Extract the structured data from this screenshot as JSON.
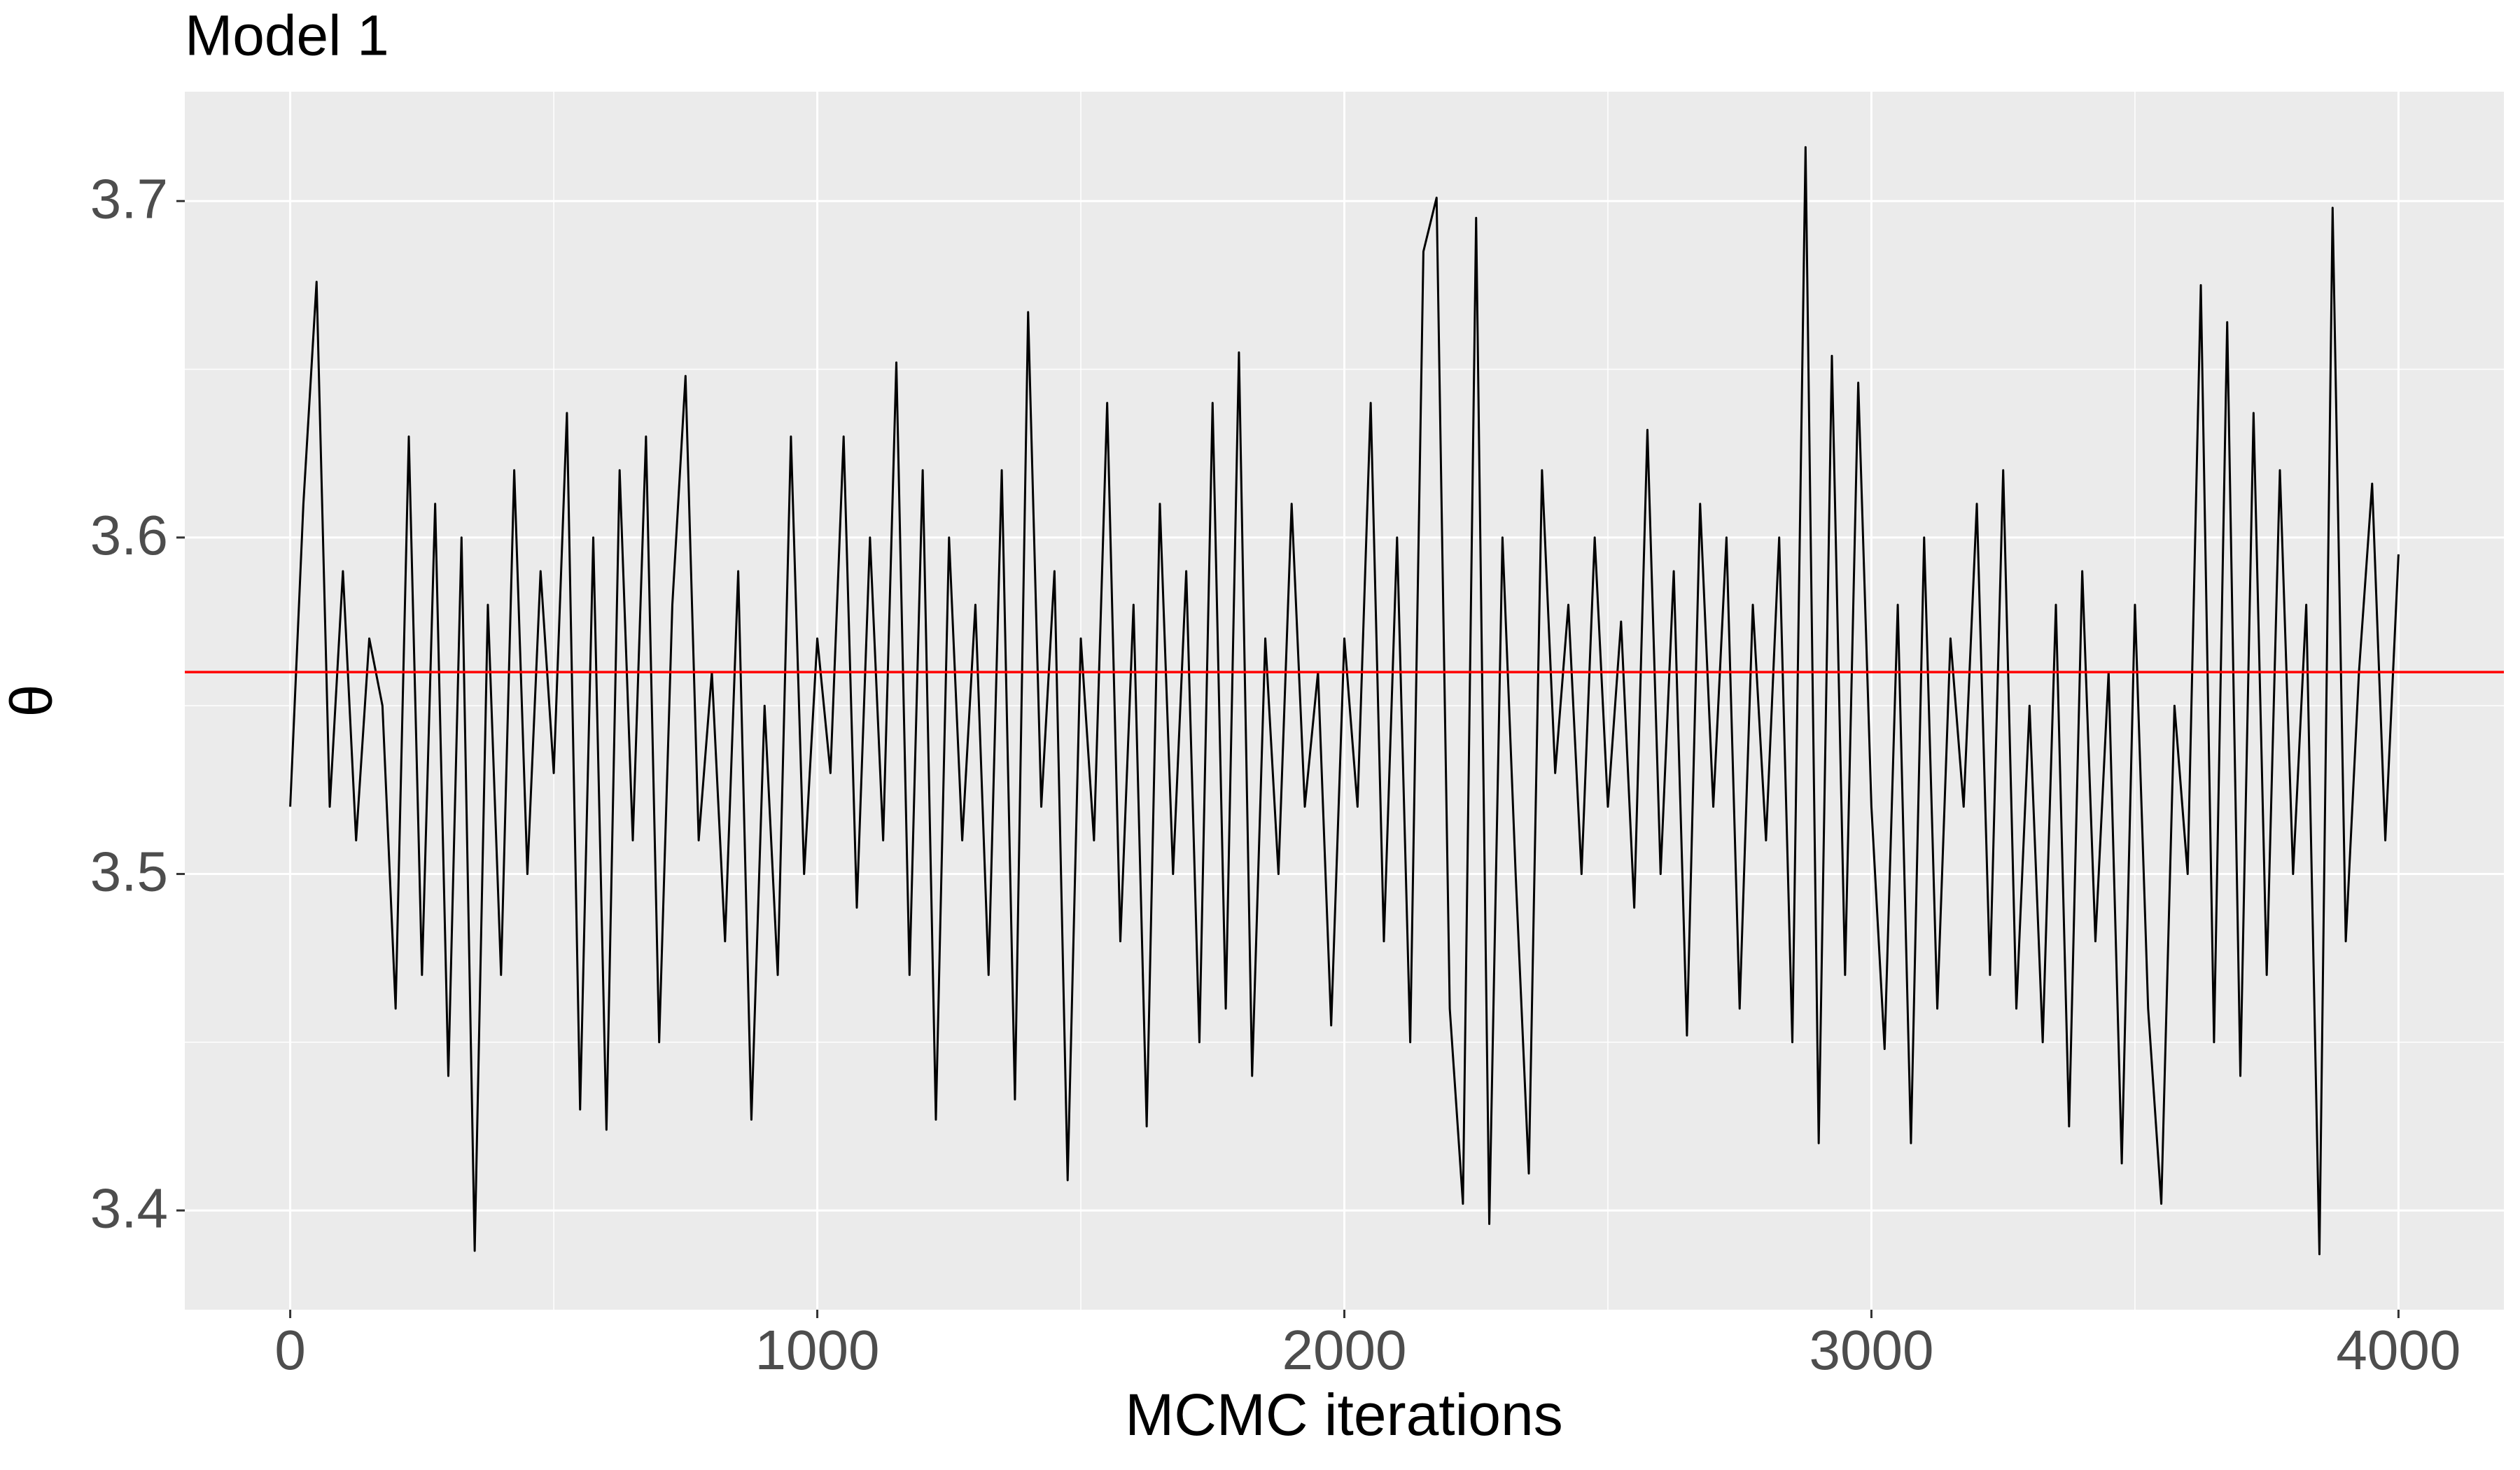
{
  "chart_data": {
    "type": "line",
    "title": "Model 1",
    "x_label": "MCMC iterations",
    "y_label": "θ",
    "color": "#000000",
    "grid": true,
    "hline": {
      "value": 3.56,
      "color": "#ff0000"
    },
    "xlim": [
      -200,
      4200
    ],
    "xticks": [
      0,
      1000,
      2000,
      3000,
      4000
    ],
    "ylim": [
      3.3705,
      3.7325
    ],
    "yticks": [
      3.4,
      3.5,
      3.6,
      3.7
    ],
    "x": [
      0,
      25,
      50,
      75,
      100,
      125,
      150,
      175,
      200,
      225,
      250,
      275,
      300,
      325,
      350,
      375,
      400,
      425,
      450,
      475,
      500,
      525,
      550,
      575,
      600,
      625,
      650,
      675,
      700,
      725,
      750,
      775,
      800,
      825,
      850,
      875,
      900,
      925,
      950,
      975,
      1000,
      1025,
      1050,
      1075,
      1100,
      1125,
      1150,
      1175,
      1200,
      1225,
      1250,
      1275,
      1300,
      1325,
      1350,
      1375,
      1400,
      1425,
      1450,
      1475,
      1500,
      1525,
      1550,
      1575,
      1600,
      1625,
      1650,
      1675,
      1700,
      1725,
      1750,
      1775,
      1800,
      1825,
      1850,
      1875,
      1900,
      1925,
      1950,
      1975,
      2000,
      2025,
      2050,
      2075,
      2100,
      2125,
      2150,
      2175,
      2200,
      2225,
      2250,
      2275,
      2300,
      2325,
      2350,
      2375,
      2400,
      2425,
      2450,
      2475,
      2500,
      2525,
      2550,
      2575,
      2600,
      2625,
      2650,
      2675,
      2700,
      2725,
      2750,
      2775,
      2800,
      2825,
      2850,
      2875,
      2900,
      2925,
      2950,
      2975,
      3000,
      3025,
      3050,
      3075,
      3100,
      3125,
      3150,
      3175,
      3200,
      3225,
      3250,
      3275,
      3300,
      3325,
      3350,
      3375,
      3400,
      3425,
      3450,
      3475,
      3500,
      3525,
      3550,
      3575,
      3600,
      3625,
      3650,
      3675,
      3700,
      3725,
      3750,
      3775,
      3800,
      3825,
      3850,
      3875,
      3900,
      3925,
      3950,
      3975,
      4000
    ],
    "values": [
      3.52,
      3.61,
      3.676,
      3.52,
      3.59,
      3.51,
      3.57,
      3.55,
      3.46,
      3.63,
      3.47,
      3.61,
      3.44,
      3.6,
      3.388,
      3.58,
      3.47,
      3.62,
      3.5,
      3.59,
      3.53,
      3.637,
      3.43,
      3.6,
      3.424,
      3.62,
      3.51,
      3.63,
      3.45,
      3.58,
      3.648,
      3.51,
      3.56,
      3.48,
      3.59,
      3.427,
      3.55,
      3.47,
      3.63,
      3.5,
      3.57,
      3.53,
      3.63,
      3.49,
      3.6,
      3.51,
      3.652,
      3.47,
      3.62,
      3.427,
      3.6,
      3.51,
      3.58,
      3.47,
      3.62,
      3.433,
      3.667,
      3.52,
      3.59,
      3.409,
      3.57,
      3.51,
      3.64,
      3.48,
      3.58,
      3.425,
      3.61,
      3.5,
      3.59,
      3.45,
      3.64,
      3.46,
      3.655,
      3.44,
      3.57,
      3.5,
      3.61,
      3.52,
      3.56,
      3.455,
      3.57,
      3.52,
      3.64,
      3.48,
      3.6,
      3.45,
      3.685,
      3.701,
      3.46,
      3.402,
      3.695,
      3.396,
      3.6,
      3.5,
      3.411,
      3.62,
      3.53,
      3.58,
      3.5,
      3.6,
      3.52,
      3.575,
      3.49,
      3.632,
      3.5,
      3.59,
      3.452,
      3.61,
      3.52,
      3.6,
      3.46,
      3.58,
      3.51,
      3.6,
      3.45,
      3.716,
      3.42,
      3.654,
      3.47,
      3.646,
      3.52,
      3.448,
      3.58,
      3.42,
      3.6,
      3.46,
      3.57,
      3.52,
      3.61,
      3.47,
      3.62,
      3.46,
      3.55,
      3.45,
      3.58,
      3.425,
      3.59,
      3.48,
      3.56,
      3.414,
      3.58,
      3.46,
      3.402,
      3.55,
      3.5,
      3.675,
      3.45,
      3.664,
      3.44,
      3.637,
      3.47,
      3.62,
      3.5,
      3.58,
      3.387,
      3.698,
      3.48,
      3.56,
      3.616,
      3.51,
      3.595
    ]
  }
}
